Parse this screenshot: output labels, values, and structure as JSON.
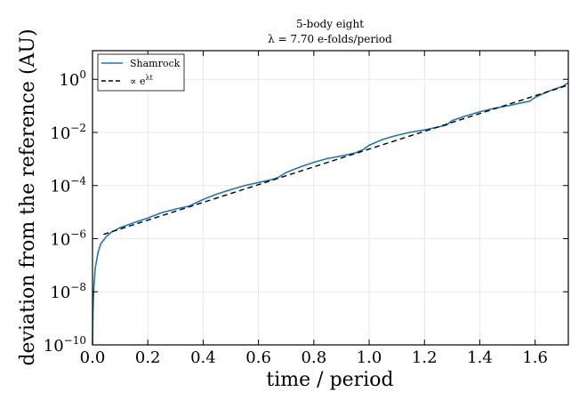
{
  "chart_data": {
    "type": "line",
    "title": "5-body eight",
    "subtitle": "λ = 7.70 e-folds/period",
    "xlabel": "time / period",
    "ylabel": "deviation from the reference (AU)",
    "xlim": [
      0.0,
      1.72
    ],
    "ylim": [
      1e-10,
      12
    ],
    "yscale": "log",
    "grid": true,
    "legend_position": "top-left",
    "x_ticks": [
      0.0,
      0.2,
      0.4,
      0.6,
      0.8,
      1.0,
      1.2,
      1.4,
      1.6
    ],
    "x_tick_labels": [
      "0.0",
      "0.2",
      "0.4",
      "0.6",
      "0.8",
      "1.0",
      "1.2",
      "1.4",
      "1.6"
    ],
    "y_ticks": [
      1e-10,
      1e-08,
      1e-06,
      0.0001,
      0.01,
      1
    ],
    "y_tick_labels": [
      {
        "base": "10",
        "exp": "−10"
      },
      {
        "base": "10",
        "exp": "−8"
      },
      {
        "base": "10",
        "exp": "−6"
      },
      {
        "base": "10",
        "exp": "−4"
      },
      {
        "base": "10",
        "exp": "−2"
      },
      {
        "base": "10",
        "exp": "0"
      }
    ],
    "series": [
      {
        "name": "Shamrock",
        "color": "#1f77b4",
        "style": "solid",
        "x": [
          0.0,
          0.002,
          0.005,
          0.01,
          0.02,
          0.03,
          0.05,
          0.07,
          0.1,
          0.15,
          0.2,
          0.25,
          0.3,
          0.35,
          0.4,
          0.45,
          0.5,
          0.55,
          0.6,
          0.65,
          0.67,
          0.7,
          0.75,
          0.8,
          0.85,
          0.9,
          0.95,
          0.98,
          1.0,
          1.05,
          1.1,
          1.15,
          1.2,
          1.25,
          1.28,
          1.3,
          1.35,
          1.4,
          1.45,
          1.5,
          1.55,
          1.58,
          1.6,
          1.65,
          1.7,
          1.72
        ],
        "y": [
          1e-10,
          2e-09,
          1.5e-08,
          8e-08,
          3e-07,
          6.5e-07,
          1.2e-06,
          1.8e-06,
          2.6e-06,
          4e-06,
          6e-06,
          9.5e-06,
          1.3e-05,
          1.7e-05,
          3e-05,
          4.8e-05,
          7e-05,
          0.0001,
          0.00013,
          0.00017,
          0.0002,
          0.00031,
          0.0005,
          0.00075,
          0.00105,
          0.0013,
          0.0017,
          0.0023,
          0.0033,
          0.0055,
          0.0078,
          0.0102,
          0.0125,
          0.016,
          0.019,
          0.028,
          0.042,
          0.06,
          0.08,
          0.1,
          0.13,
          0.15,
          0.21,
          0.36,
          0.55,
          0.75
        ]
      },
      {
        "name": "∝ e^{λt}",
        "color": "#000000",
        "style": "dashed",
        "x": [
          0.04,
          1.72
        ],
        "y": [
          1.45e-06,
          0.605
        ]
      }
    ],
    "legend": [
      {
        "label": "Shamrock",
        "style": "solid",
        "color": "#1f77b4"
      },
      {
        "base": "∝ e",
        "sup": "λt",
        "style": "dashed",
        "color": "#000000"
      }
    ]
  }
}
